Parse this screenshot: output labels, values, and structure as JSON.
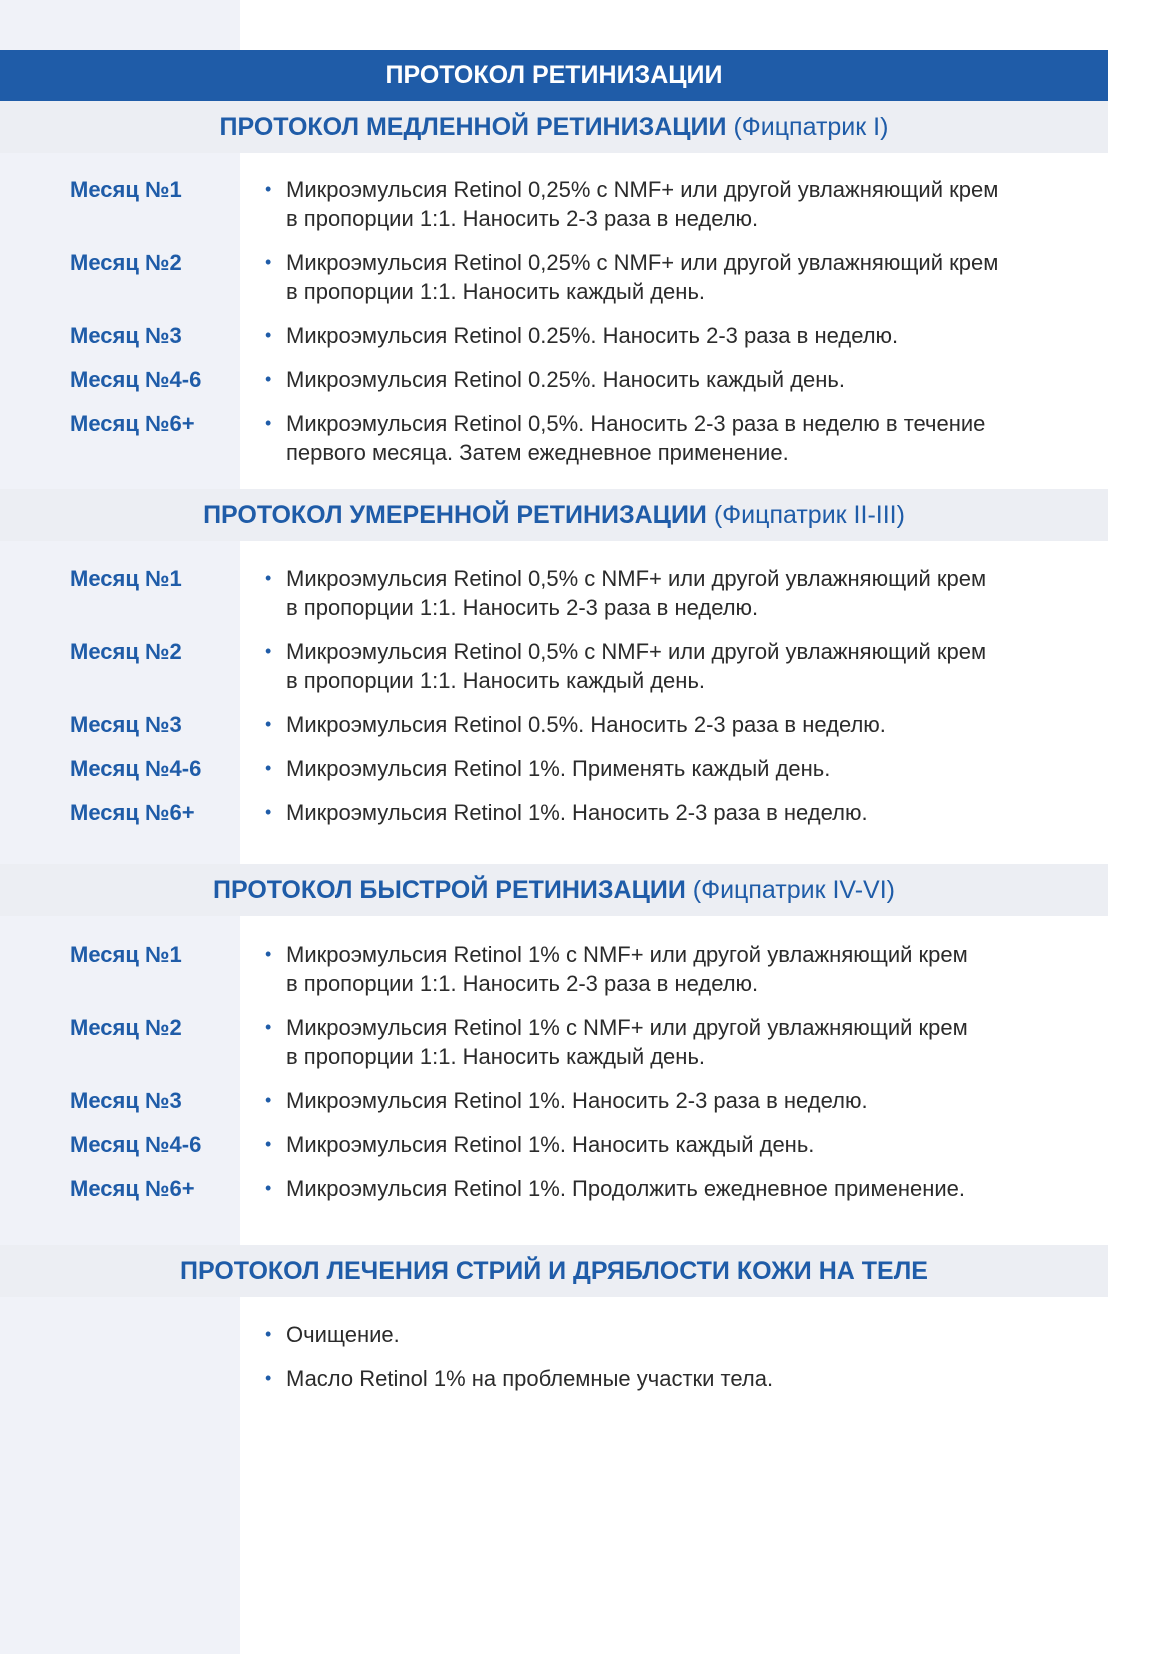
{
  "title": "ПРОТОКОЛ РЕТИНИЗАЦИИ",
  "colors": {
    "accent": "#1f5ca8",
    "header_bg": "#eceef3",
    "column_bg": "#f0f2f8"
  },
  "sections": [
    {
      "title": "ПРОТОКОЛ МЕДЛЕННОЙ РЕТИНИЗАЦИИ",
      "subtitle": " (Фицпатрик I)",
      "rows": [
        {
          "month": "Месяц №1",
          "text": "Микроэмульсия Retinol 0,25% с NMF+ или другой увлажняющий крем\nв пропорции 1:1. Наносить 2-3 раза в неделю."
        },
        {
          "month": "Месяц №2",
          "text": "Микроэмульсия Retinol 0,25% с NMF+ или другой увлажняющий крем\nв пропорции 1:1. Наносить каждый день."
        },
        {
          "month": "Месяц №3",
          "text": "Микроэмульсия Retinol 0.25%. Наносить 2-3 раза в неделю."
        },
        {
          "month": "Месяц №4-6",
          "text": "Микроэмульсия Retinol 0.25%. Наносить каждый день."
        },
        {
          "month": "Месяц №6+",
          "text": "Микроэмульсия Retinol 0,5%. Наносить 2-3 раза в неделю в течение\nпервого месяца. Затем ежедневное применение."
        }
      ]
    },
    {
      "title": "ПРОТОКОЛ УМЕРЕННОЙ РЕТИНИЗАЦИИ",
      "subtitle": " (Фицпатрик II-III)",
      "rows": [
        {
          "month": "Месяц №1",
          "text": "Микроэмульсия Retinol 0,5% с NMF+ или другой увлажняющий крем\nв пропорции 1:1. Наносить 2-3 раза в неделю."
        },
        {
          "month": "Месяц №2",
          "text": "Микроэмульсия Retinol 0,5% с NMF+ или другой увлажняющий крем\nв пропорции 1:1. Наносить каждый день."
        },
        {
          "month": "Месяц №3",
          "text": "Микроэмульсия Retinol 0.5%. Наносить 2-3 раза в неделю."
        },
        {
          "month": "Месяц №4-6",
          "text": "Микроэмульсия Retinol 1%. Применять каждый день."
        },
        {
          "month": "Месяц №6+",
          "text": "Микроэмульсия Retinol 1%. Наносить 2-3 раза в неделю."
        }
      ]
    },
    {
      "title": "ПРОТОКОЛ БЫСТРОЙ РЕТИНИЗАЦИИ",
      "subtitle": " (Фицпатрик IV-VI)",
      "rows": [
        {
          "month": "Месяц №1",
          "text": "Микроэмульсия Retinol 1% с NMF+ или другой увлажняющий крем\nв пропорции 1:1. Наносить 2-3 раза в неделю."
        },
        {
          "month": "Месяц №2",
          "text": "Микроэмульсия Retinol 1% с NMF+ или другой увлажняющий крем\nв пропорции 1:1. Наносить каждый день."
        },
        {
          "month": "Месяц №3",
          "text": "Микроэмульсия Retinol 1%. Наносить 2-3 раза в неделю."
        },
        {
          "month": "Месяц №4-6",
          "text": "Микроэмульсия Retinol 1%. Наносить каждый день."
        },
        {
          "month": "Месяц №6+",
          "text": "Микроэмульсия Retinol 1%. Продолжить ежедневное применение."
        }
      ]
    },
    {
      "title": "ПРОТОКОЛ ЛЕЧЕНИЯ СТРИЙ И ДРЯБЛОСТИ КОЖИ НА ТЕЛЕ",
      "subtitle": "",
      "rows": [
        {
          "month": "",
          "text": "Очищение."
        },
        {
          "month": "",
          "text": "Масло Retinol 1% на проблемные участки тела."
        }
      ]
    }
  ]
}
